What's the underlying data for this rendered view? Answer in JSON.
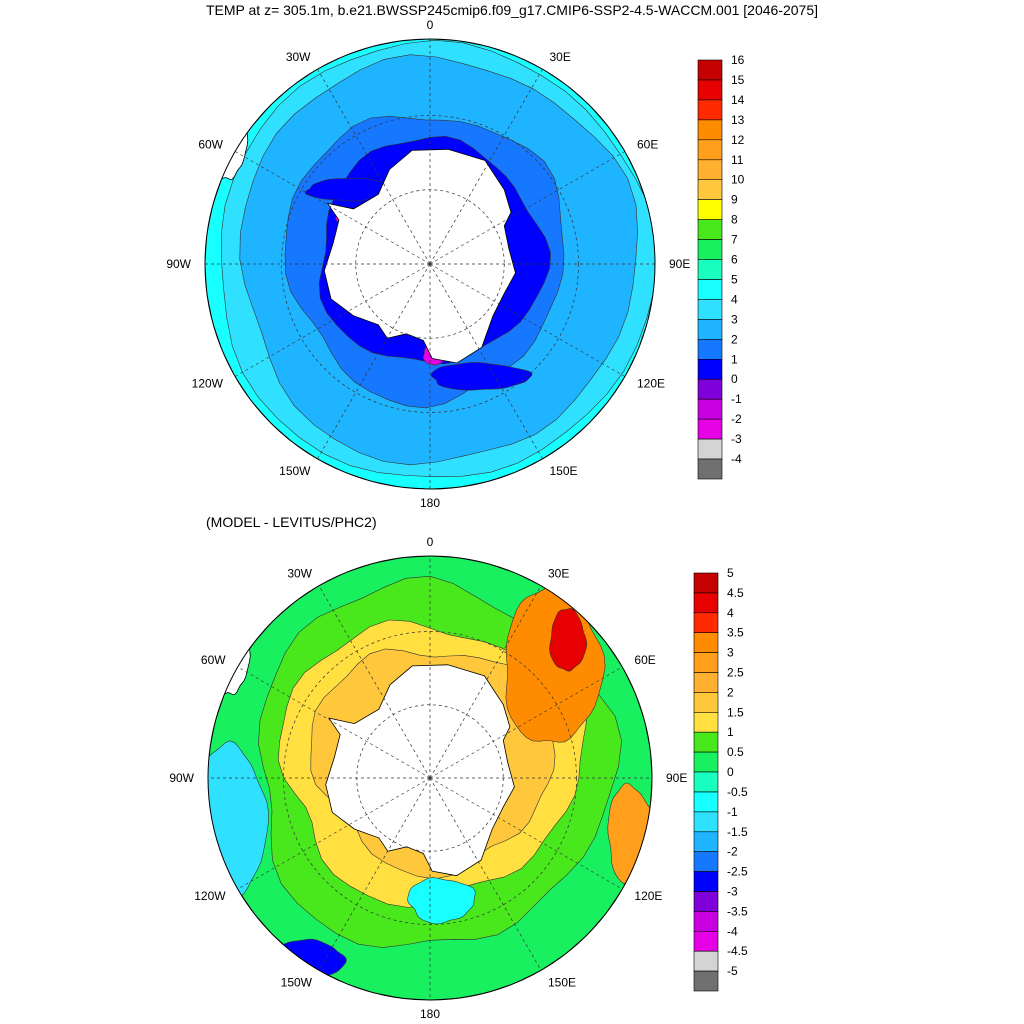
{
  "titles": {
    "main": "TEMP at z= 305.1m, b.e21.BWSSP245cmip6.f09_g17.CMIP6-SSP2-4.5-WACCM.001 [2046-2075]",
    "sub": "(MODEL - LEVITUS/PHC2)"
  },
  "chart_data": [
    {
      "type": "heatmap",
      "projection": "polar-stereographic-south",
      "variable": "TEMP at z= 305.1m",
      "title": "TEMP at z= 305.1m, b.e21.BWSSP245cmip6.f09_g17.CMIP6-SSP2-4.5-WACCM.001 [2046-2075]",
      "longitude_labels": [
        "0",
        "30E",
        "60E",
        "90E",
        "120E",
        "150E",
        "180",
        "150W",
        "120W",
        "90W",
        "60W",
        "30W"
      ],
      "colorbar": {
        "levels": [
          "16",
          "15",
          "14",
          "13",
          "12",
          "11",
          "10",
          "9",
          "8",
          "7",
          "6",
          "5",
          "4",
          "3",
          "2",
          "1",
          "0",
          "-1",
          "-2",
          "-3",
          "-4"
        ],
        "colors": [
          "#c40000",
          "#e60000",
          "#ff2a00",
          "#ff8c00",
          "#ff9f1c",
          "#ffb030",
          "#ffc83c",
          "#ffff00",
          "#48e81c",
          "#18f060",
          "#18ffbf",
          "#18ffff",
          "#30e0ff",
          "#1eb4ff",
          "#1678ff",
          "#0000ff",
          "#7f00d8",
          "#c800e0",
          "#e600e6",
          "#d4d4d4",
          "#707070"
        ]
      },
      "pattern": "warm (5-7) near outer edge at 60S, cooling to 2-3 across most of the Southern Ocean, 0 to -2 on the Weddell and Ross shelves"
    },
    {
      "type": "heatmap",
      "projection": "polar-stereographic-south",
      "variable": "TEMP difference",
      "title": "(MODEL - LEVITUS/PHC2)",
      "longitude_labels": [
        "0",
        "30E",
        "60E",
        "90E",
        "120E",
        "150E",
        "180",
        "150W",
        "120W",
        "90W",
        "60W",
        "30W"
      ],
      "colorbar": {
        "levels": [
          "5",
          "4.5",
          "4",
          "3.5",
          "3",
          "2.5",
          "2",
          "1.5",
          "1",
          "0.5",
          "0",
          "-0.5",
          "-1",
          "-1.5",
          "-2",
          "-2.5",
          "-3",
          "-3.5",
          "-4",
          "-4.5",
          "-5"
        ],
        "colors": [
          "#c40000",
          "#e60000",
          "#ff2a00",
          "#ff8c00",
          "#ff9f1c",
          "#ffb030",
          "#ffc83c",
          "#ffe040",
          "#48e81c",
          "#18f060",
          "#18ffbf",
          "#18ffff",
          "#30e0ff",
          "#1eb4ff",
          "#1678ff",
          "#0000ff",
          "#7f00d8",
          "#c800e0",
          "#e600e6",
          "#d4d4d4",
          "#707070"
        ]
      },
      "pattern": "positive bias 1.5-3 around the Antarctic margin and Atlantic/Indian sectors, 4-5 near 60E, near zero in the Pacific sector with negatives to -3.5 near 150W"
    }
  ]
}
